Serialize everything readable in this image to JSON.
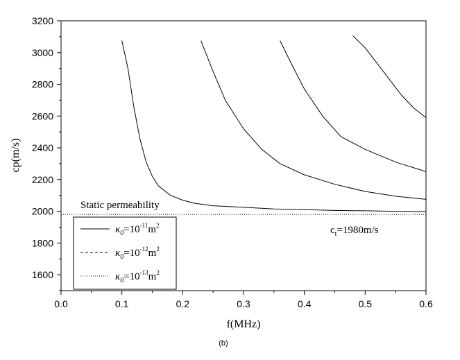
{
  "chart_data": {
    "type": "line",
    "xlabel": "f(MHz)",
    "ylabel": "cp(m/s)",
    "xlim": [
      0.0,
      0.6
    ],
    "ylim": [
      1500,
      3200
    ],
    "x_ticks": [
      "0.0",
      "0.1",
      "0.2",
      "0.3",
      "0.4",
      "0.5",
      "0.6"
    ],
    "y_ticks": [
      "1600",
      "1800",
      "2000",
      "2200",
      "2400",
      "2600",
      "2800",
      "3000",
      "3200"
    ],
    "caption": "(b)",
    "annotations": {
      "static_label": "Static permeability",
      "static_value": 1980,
      "ct_label_main": "c",
      "ct_label_sub": "t",
      "ct_label_rest": "=1980m/s"
    },
    "legend": {
      "position": "bottom-left",
      "entries": [
        {
          "style": "solid",
          "kappa": "κ",
          "kappa_sub": "0",
          "eq": "=10",
          "exp": "-11",
          "unit": "m",
          "unit_exp": "2"
        },
        {
          "style": "dashed",
          "kappa": "κ",
          "kappa_sub": "0",
          "eq": "=10",
          "exp": "-12",
          "unit": "m",
          "unit_exp": "2"
        },
        {
          "style": "dotted",
          "kappa": "κ",
          "kappa_sub": "0",
          "eq": "=10",
          "exp": "-13",
          "unit": "m",
          "unit_exp": "2"
        }
      ]
    },
    "series": [
      {
        "style": "solid",
        "x": [
          0.1,
          0.11,
          0.12,
          0.13,
          0.14,
          0.15,
          0.16,
          0.18,
          0.2,
          0.22,
          0.25,
          0.3,
          0.35,
          0.4,
          0.45,
          0.5,
          0.55,
          0.6
        ],
        "y": [
          3075,
          2900,
          2650,
          2450,
          2310,
          2220,
          2160,
          2100,
          2070,
          2050,
          2035,
          2025,
          2015,
          2010,
          2005,
          2003,
          2000,
          1998
        ]
      },
      {
        "style": "solid",
        "x": [
          0.23,
          0.25,
          0.27,
          0.3,
          0.33,
          0.36,
          0.4,
          0.45,
          0.5,
          0.55,
          0.6
        ],
        "y": [
          3075,
          2880,
          2700,
          2520,
          2390,
          2300,
          2230,
          2170,
          2125,
          2095,
          2075
        ]
      },
      {
        "style": "solid",
        "x": [
          0.36,
          0.38,
          0.4,
          0.43,
          0.46,
          0.5,
          0.55,
          0.6
        ],
        "y": [
          3075,
          2920,
          2770,
          2600,
          2470,
          2390,
          2310,
          2250
        ]
      },
      {
        "style": "solid",
        "x": [
          0.48,
          0.5,
          0.52,
          0.54,
          0.56,
          0.58,
          0.6
        ],
        "y": [
          3105,
          3030,
          2930,
          2830,
          2730,
          2650,
          2590
        ]
      }
    ],
    "reference_line": {
      "style": "dotted",
      "y": 1980
    }
  }
}
